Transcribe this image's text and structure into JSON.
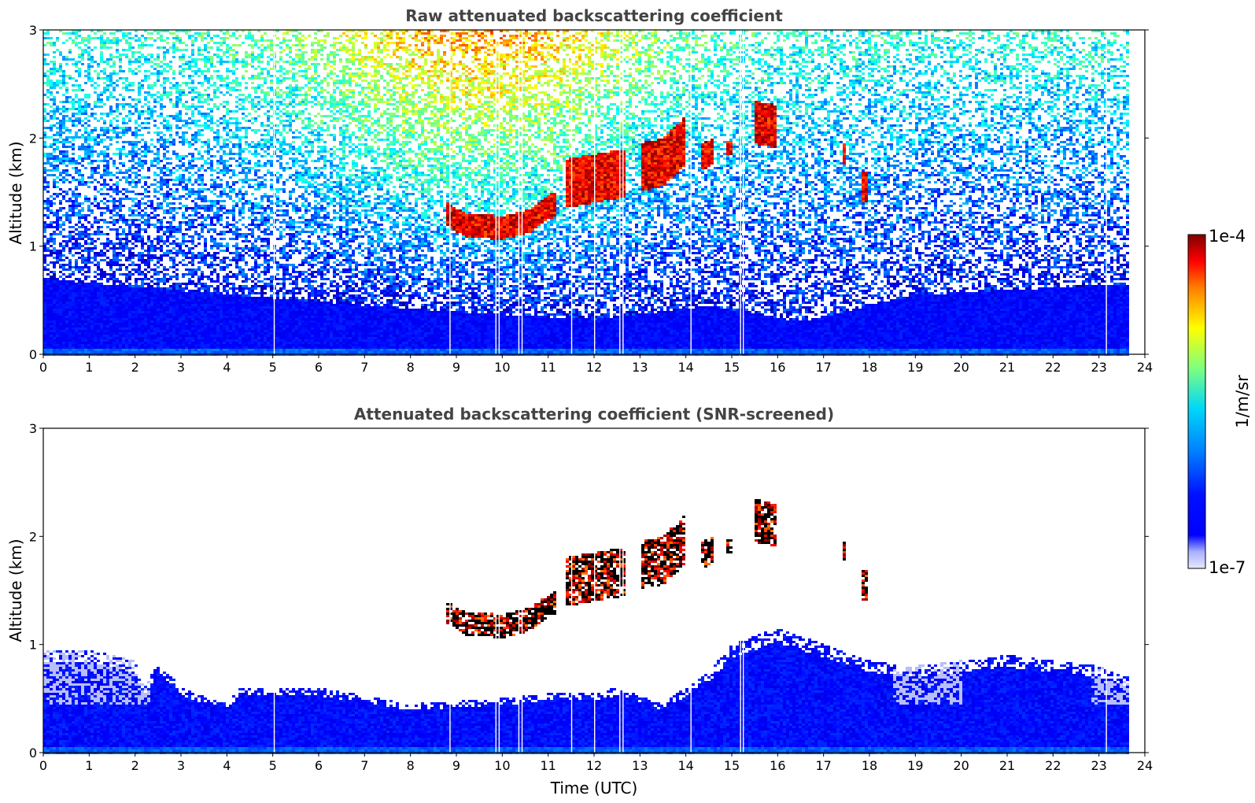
{
  "colors": {
    "jet": [
      "#00007f",
      "#0000ff",
      "#007fff",
      "#00ffff",
      "#7fff7f",
      "#ffff00",
      "#ff7f00",
      "#ff0000",
      "#7f0000"
    ],
    "pale_low": "#e6e8ff",
    "frame": "#000000",
    "outline_black": "#000000"
  },
  "colorbar": {
    "max_label": "1e-4",
    "min_label": "1e-7",
    "unit_label": "1/m/sr",
    "scale": "log",
    "range": [
      1e-07,
      0.0001
    ]
  },
  "chart_data": [
    {
      "type": "heatmap",
      "title": "Raw attenuated backscattering coefficient",
      "xlabel": "",
      "ylabel": "Altitude (km)",
      "xlim": [
        0,
        24
      ],
      "ylim": [
        0,
        3
      ],
      "xticks": [
        "0",
        "1",
        "2",
        "3",
        "4",
        "5",
        "6",
        "7",
        "8",
        "9",
        "10",
        "11",
        "12",
        "13",
        "14",
        "15",
        "16",
        "17",
        "18",
        "19",
        "20",
        "21",
        "22",
        "23",
        "24"
      ],
      "yticks": [
        "0",
        "1",
        "2",
        "3"
      ],
      "data_end_time": 23.65,
      "gap_times": [
        5.02,
        8.85,
        9.85,
        9.92,
        10.35,
        10.42,
        11.5,
        12.0,
        12.55,
        12.62,
        14.1,
        15.18,
        15.24,
        23.15
      ],
      "boundary_layer_top_km": [
        [
          0,
          0.7
        ],
        [
          4,
          0.55
        ],
        [
          8,
          0.42
        ],
        [
          12,
          0.32
        ],
        [
          14.5,
          0.45
        ],
        [
          16.5,
          0.3
        ],
        [
          19,
          0.55
        ],
        [
          23.65,
          0.65
        ]
      ],
      "noise_level_note": "",
      "cloud_layers": [
        {
          "t0": 8.75,
          "t1": 11.2,
          "base_km": [
            [
              8.75,
              1.2
            ],
            [
              9.2,
              1.08
            ],
            [
              10.0,
              1.06
            ],
            [
              10.6,
              1.12
            ],
            [
              11.2,
              1.3
            ]
          ],
          "thickness_km": 0.22
        },
        {
          "t0": 11.35,
          "t1": 12.7,
          "base_km": [
            [
              11.35,
              1.35
            ],
            [
              12.0,
              1.4
            ],
            [
              12.7,
              1.45
            ]
          ],
          "thickness_km": 0.45
        },
        {
          "t0": 13.0,
          "t1": 14.0,
          "base_km": [
            [
              13.0,
              1.5
            ],
            [
              13.5,
              1.55
            ],
            [
              14.0,
              1.75
            ]
          ],
          "thickness_km": 0.45
        },
        {
          "t0": 14.35,
          "t1": 14.6,
          "base_km": [
            [
              14.35,
              1.7
            ],
            [
              14.6,
              1.75
            ]
          ],
          "thickness_km": 0.25
        },
        {
          "t0": 14.85,
          "t1": 15.05,
          "base_km": [
            [
              14.85,
              1.85
            ],
            [
              15.05,
              1.85
            ]
          ],
          "thickness_km": 0.12
        },
        {
          "t0": 15.5,
          "t1": 16.0,
          "base_km": [
            [
              15.5,
              1.95
            ],
            [
              16.0,
              1.9
            ]
          ],
          "thickness_km": 0.4
        },
        {
          "t0": 17.4,
          "t1": 17.5,
          "base_km": [
            [
              17.4,
              1.75
            ],
            [
              17.5,
              1.75
            ]
          ],
          "thickness_km": 0.2
        },
        {
          "t0": 17.8,
          "t1": 17.95,
          "base_km": [
            [
              17.8,
              1.4
            ],
            [
              17.95,
              1.4
            ]
          ],
          "thickness_km": 0.3
        }
      ]
    },
    {
      "type": "heatmap",
      "title": "Attenuated backscattering coefficient (SNR-screened)",
      "xlabel": "Time (UTC)",
      "ylabel": "Altitude (km)",
      "xlim": [
        0,
        24
      ],
      "ylim": [
        0,
        3
      ],
      "xticks": [
        "0",
        "1",
        "2",
        "3",
        "4",
        "5",
        "6",
        "7",
        "8",
        "9",
        "10",
        "11",
        "12",
        "13",
        "14",
        "15",
        "16",
        "17",
        "18",
        "19",
        "20",
        "21",
        "22",
        "23",
        "24"
      ],
      "yticks": [
        "0",
        "1",
        "2",
        "3"
      ],
      "data_end_time": 23.65,
      "gap_times": [
        5.02,
        8.85,
        9.85,
        9.92,
        10.35,
        10.42,
        11.5,
        12.0,
        12.55,
        12.62,
        14.1,
        15.18,
        15.24,
        23.15
      ],
      "screened_top_km": [
        [
          0,
          0.95
        ],
        [
          1.0,
          0.95
        ],
        [
          2.0,
          0.85
        ],
        [
          2.2,
          0.6
        ],
        [
          2.5,
          0.85
        ],
        [
          3.0,
          0.6
        ],
        [
          4.0,
          0.45
        ],
        [
          4.3,
          0.6
        ],
        [
          6.0,
          0.6
        ],
        [
          8.0,
          0.45
        ],
        [
          10.0,
          0.5
        ],
        [
          11.0,
          0.55
        ],
        [
          12.0,
          0.55
        ],
        [
          12.5,
          0.6
        ],
        [
          13.5,
          0.45
        ],
        [
          14.0,
          0.6
        ],
        [
          14.5,
          0.75
        ],
        [
          15.0,
          1.0
        ],
        [
          16.0,
          1.15
        ],
        [
          17.0,
          1.0
        ],
        [
          18.0,
          0.85
        ],
        [
          19.0,
          0.8
        ],
        [
          20.0,
          0.85
        ],
        [
          21.0,
          0.9
        ],
        [
          22.0,
          0.85
        ],
        [
          23.0,
          0.8
        ],
        [
          23.65,
          0.7
        ]
      ]
    }
  ]
}
